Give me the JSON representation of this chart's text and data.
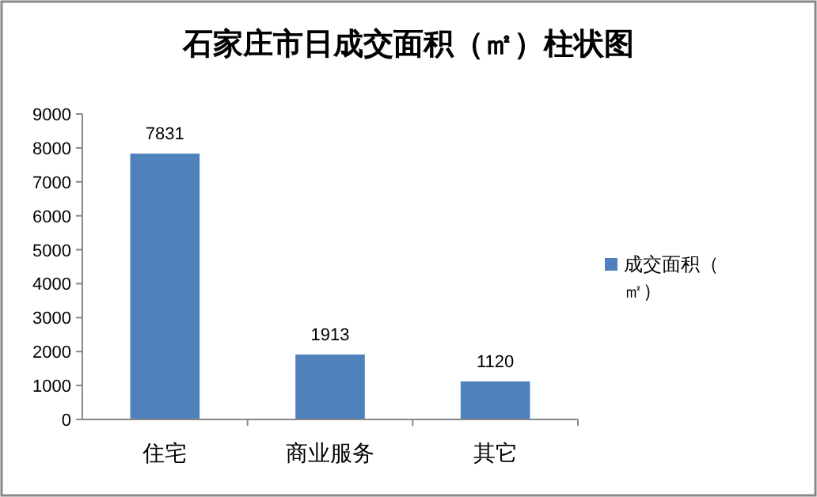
{
  "chart_data": {
    "type": "bar",
    "title": "石家庄市日成交面积（㎡）柱状图",
    "categories": [
      "住宅",
      "商业服务",
      "其它"
    ],
    "series": [
      {
        "name": "成交面积（㎡）",
        "color": "#4f81bd",
        "values": [
          7831,
          1913,
          1120
        ]
      }
    ],
    "ylim": [
      0,
      9000
    ],
    "yticks": [
      0,
      1000,
      2000,
      3000,
      4000,
      5000,
      6000,
      7000,
      8000,
      9000
    ],
    "data_labels": true,
    "legend": "right",
    "grid": false
  }
}
